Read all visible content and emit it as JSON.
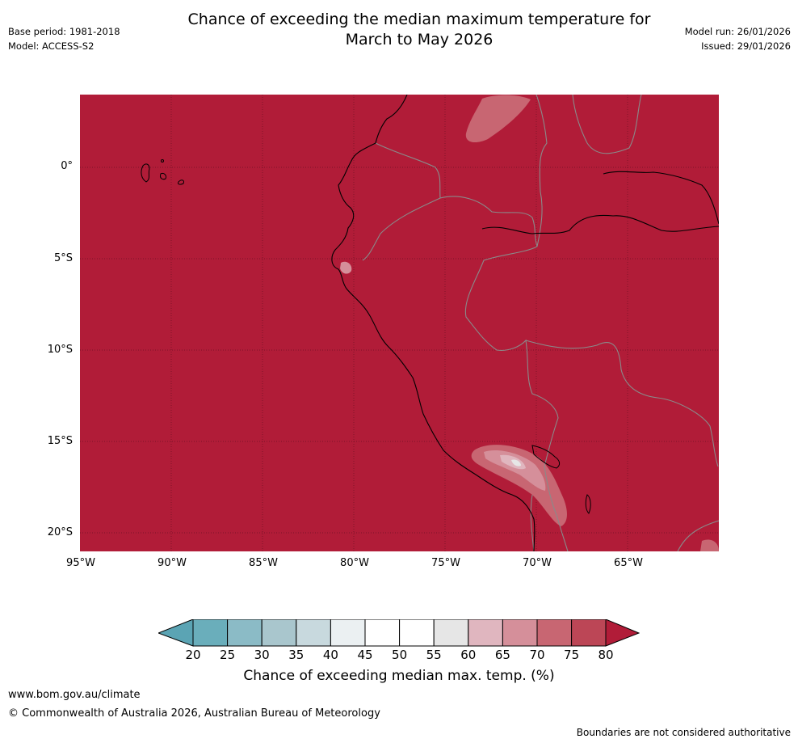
{
  "header": {
    "title_line1": "Chance of exceeding the median maximum temperature for",
    "title_line2": "March to May 2026",
    "base_period": "Base period: 1981-2018",
    "model": "Model: ACCESS-S2",
    "model_run": "Model run: 26/01/2026",
    "issued": "Issued: 29/01/2026"
  },
  "map": {
    "lat_labels": [
      "0°",
      "5°S",
      "10°S",
      "15°S",
      "20°S"
    ],
    "lon_labels": [
      "95°W",
      "90°W",
      "85°W",
      "80°W",
      "75°W",
      "70°W",
      "65°W"
    ],
    "background_color": "#b11c38",
    "coastline_color": "#000000",
    "border_color": "#808080"
  },
  "colorbar": {
    "ticks": [
      "20",
      "25",
      "30",
      "35",
      "40",
      "45",
      "50",
      "55",
      "60",
      "65",
      "70",
      "75",
      "80"
    ],
    "colors": [
      "#5ba4b4",
      "#6aaebb",
      "#8bbbc6",
      "#a9c6cd",
      "#c8d9de",
      "#ebf0f2",
      "#ffffff",
      "#ffffff",
      "#e6e6e6",
      "#e0b6bf",
      "#d58f9a",
      "#c86672",
      "#bc4656",
      "#b11c38"
    ],
    "label": "Chance of exceeding median max. temp. (%)"
  },
  "footer": {
    "website": "www.bom.gov.au/climate",
    "copyright": "© Commonwealth of Australia 2026, Australian Bureau of Meteorology",
    "disclaimer": "Boundaries are not considered authoritative"
  }
}
